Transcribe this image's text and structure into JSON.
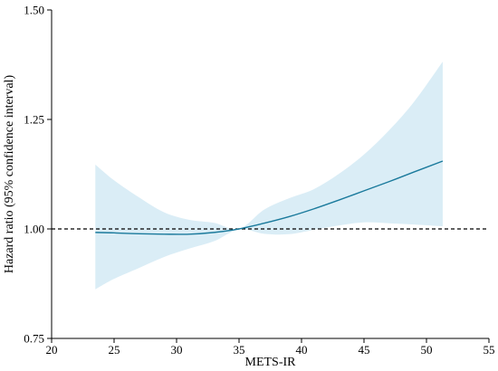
{
  "chart_data": {
    "type": "line",
    "title": "",
    "xlabel": "METS-IR",
    "ylabel": "Hazard ratio (95% confidence interval)",
    "xlim": [
      20,
      55
    ],
    "ylim": [
      0.75,
      1.5
    ],
    "x_ticks": [
      20,
      25,
      30,
      35,
      40,
      45,
      50,
      55
    ],
    "x_tick_labels": [
      "20",
      "25",
      "30",
      "35",
      "40",
      "45",
      "50",
      "55"
    ],
    "y_ticks": [
      0.75,
      1.0,
      1.25,
      1.5
    ],
    "y_tick_labels": [
      "0.75",
      "1.00",
      "1.25",
      "1.50"
    ],
    "grid": false,
    "reference_line": {
      "y": 1.0,
      "style": "dashed",
      "color": "#000000"
    },
    "colors": {
      "line": "#1a7a9c",
      "ci_band": "#daedf6",
      "axis": "#000000"
    },
    "series": [
      {
        "x": [
          23.5,
          25,
          27,
          29,
          31,
          33,
          35,
          37,
          39,
          41,
          43,
          45,
          47,
          49,
          51.3
        ],
        "hr": [
          0.992,
          0.991,
          0.989,
          0.988,
          0.988,
          0.992,
          1.0,
          1.013,
          1.028,
          1.046,
          1.066,
          1.087,
          1.108,
          1.13,
          1.155
        ],
        "lower": [
          0.862,
          0.886,
          0.911,
          0.936,
          0.955,
          0.972,
          0.999,
          0.989,
          0.988,
          0.998,
          1.008,
          1.015,
          1.013,
          1.01,
          1.006
        ],
        "upper": [
          1.147,
          1.111,
          1.072,
          1.038,
          1.021,
          1.014,
          1.0,
          1.044,
          1.07,
          1.091,
          1.126,
          1.17,
          1.225,
          1.29,
          1.382
        ]
      }
    ]
  }
}
